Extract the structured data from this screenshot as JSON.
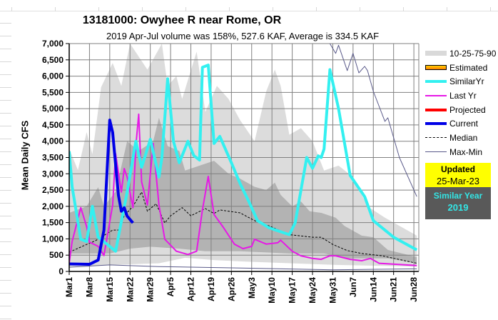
{
  "title": "13181000: Owyhee R near Rome, OR",
  "subtitle": "2019 Apr-Jul volume was 158%, 527.6 KAF, Average is 334.5 KAF",
  "updated": {
    "label": "Updated",
    "date": "25-Mar-23"
  },
  "similar_year": {
    "label": "Similar Year",
    "year": "2019"
  },
  "legend": [
    {
      "label": "10-25-75-90",
      "color": "#d9d9d9"
    },
    {
      "label": "Estimated",
      "color": "#ffa500"
    },
    {
      "label": "SimilarYr",
      "color": "#33f0f0"
    },
    {
      "label": "Last Yr",
      "color": "#e619e6"
    },
    {
      "label": "Projected",
      "color": "#ff0000"
    },
    {
      "label": "Current",
      "color": "#0000e6"
    },
    {
      "label": "Median",
      "color": "#000000"
    },
    {
      "label": "Max-Min",
      "color": "#5a5a8a"
    }
  ],
  "chart_data": {
    "type": "line",
    "title": "13181000: Owyhee R near Rome, OR",
    "ylabel": "Mean Daily CFS",
    "xlabel": "",
    "ylim": [
      0,
      7000
    ],
    "xlim": [
      "Mar 1",
      "Jun 29"
    ],
    "grid": true,
    "legend_position": "right",
    "yticks": [
      "0",
      "500",
      "1,000",
      "1,500",
      "2,000",
      "2,500",
      "3,000",
      "3,500",
      "4,000",
      "4,500",
      "5,000",
      "5,500",
      "6,000",
      "6,500",
      "7,000"
    ],
    "xticks": [
      "Mar1",
      "Mar8",
      "Mar15",
      "Mar22",
      "Mar29",
      "Apr5",
      "Apr12",
      "Apr19",
      "Apr26",
      "May3",
      "May10",
      "May17",
      "May24",
      "May31",
      "Jun7",
      "Jun14",
      "Jun21",
      "Jun28"
    ],
    "bands": {
      "p90": [
        [
          "Mar 1",
          3770
        ],
        [
          "Mar 4",
          3110
        ],
        [
          "Mar 7",
          4280
        ],
        [
          "Mar 9",
          3600
        ],
        [
          "Mar 12",
          5660
        ],
        [
          "Mar 16",
          6400
        ],
        [
          "Mar 19",
          5700
        ],
        [
          "Mar 22",
          7000
        ],
        [
          "Mar 28",
          6200
        ],
        [
          "Apr 2",
          7000
        ],
        [
          "Apr 4",
          5700
        ],
        [
          "Apr 7",
          6000
        ],
        [
          "Apr 9",
          5300
        ],
        [
          "Apr 14",
          6750
        ],
        [
          "Apr 17",
          4900
        ],
        [
          "Apr 21",
          5700
        ],
        [
          "Apr 25",
          5300
        ],
        [
          "Apr 29",
          4650
        ],
        [
          "May 4",
          4000
        ],
        [
          "May 8",
          5530
        ],
        [
          "May 11",
          6200
        ],
        [
          "May 13",
          5700
        ],
        [
          "May 16",
          4200
        ],
        [
          "May 20",
          4400
        ],
        [
          "May 24",
          4000
        ],
        [
          "May 28",
          3100
        ],
        [
          "Jun 2",
          3250
        ],
        [
          "Jun 7",
          2900
        ],
        [
          "Jun 12",
          2000
        ],
        [
          "Jun 18",
          1650
        ],
        [
          "Jun 29",
          1100
        ]
      ],
      "p75": [
        [
          "Mar 1",
          1800
        ],
        [
          "Mar 7",
          2000
        ],
        [
          "Mar 11",
          2590
        ],
        [
          "Mar 13",
          2000
        ],
        [
          "Mar 17",
          2450
        ],
        [
          "Mar 21",
          4000
        ],
        [
          "Mar 25",
          3700
        ],
        [
          "Mar 30",
          4000
        ],
        [
          "Apr 1",
          4720
        ],
        [
          "Apr 4",
          3850
        ],
        [
          "Apr 8",
          3700
        ],
        [
          "Apr 10",
          3100
        ],
        [
          "Apr 15",
          3250
        ],
        [
          "Apr 20",
          3400
        ],
        [
          "Apr 25",
          3000
        ],
        [
          "Apr 29",
          2850
        ],
        [
          "May 4",
          2600
        ],
        [
          "May 8",
          2500
        ],
        [
          "May 11",
          2730
        ],
        [
          "May 13",
          2350
        ],
        [
          "May 17",
          2000
        ],
        [
          "May 20",
          2150
        ],
        [
          "May 23",
          1850
        ],
        [
          "May 27",
          1800
        ],
        [
          "Jun 1",
          1650
        ],
        [
          "Jun 4",
          1400
        ],
        [
          "Jun 10",
          1100
        ],
        [
          "Jun 14",
          1050
        ],
        [
          "Jun 19",
          660
        ],
        [
          "Jun 29",
          440
        ]
      ],
      "p25": [
        [
          "Mar 1",
          550
        ],
        [
          "Mar 15",
          550
        ],
        [
          "Mar 22",
          700
        ],
        [
          "Mar 29",
          760
        ],
        [
          "Apr 8",
          700
        ],
        [
          "Apr 17",
          620
        ],
        [
          "Apr 29",
          620
        ],
        [
          "May 16",
          550
        ],
        [
          "May 28",
          550
        ],
        [
          "Jun 5",
          400
        ],
        [
          "Jun 19",
          400
        ],
        [
          "Jun 29",
          250
        ]
      ],
      "p10": [
        [
          "Mar 1",
          150
        ],
        [
          "Mar 15",
          200
        ],
        [
          "Apr 1",
          250
        ],
        [
          "Apr 10",
          420
        ],
        [
          "Apr 20",
          350
        ],
        [
          "May 1",
          300
        ],
        [
          "Jun 1",
          200
        ],
        [
          "Jun 29",
          150
        ]
      ]
    },
    "series": [
      {
        "name": "Median",
        "points": [
          [
            "Mar 1",
            590
          ],
          [
            "Mar 7",
            830
          ],
          [
            "Mar 10",
            940
          ],
          [
            "Mar 16",
            1270
          ],
          [
            "Mar 18",
            1270
          ],
          [
            "Mar 20",
            1710
          ],
          [
            "Mar 23",
            2000
          ],
          [
            "Mar 26",
            2440
          ],
          [
            "Mar 28",
            1850
          ],
          [
            "Mar 31",
            2080
          ],
          [
            "Apr 3",
            1490
          ],
          [
            "Apr 5",
            1710
          ],
          [
            "Apr 9",
            1960
          ],
          [
            "Apr 12",
            1710
          ],
          [
            "Apr 17",
            1930
          ],
          [
            "Apr 20",
            1780
          ],
          [
            "Apr 22",
            1890
          ],
          [
            "Apr 29",
            1800
          ],
          [
            "May 4",
            1560
          ],
          [
            "May 9",
            1400
          ],
          [
            "May 16",
            1130
          ],
          [
            "May 24",
            1050
          ],
          [
            "May 27",
            1050
          ],
          [
            "May 31",
            830
          ],
          [
            "Jun 5",
            640
          ],
          [
            "Jun 10",
            550
          ],
          [
            "Jun 17",
            480
          ],
          [
            "Jun 29",
            250
          ]
        ]
      },
      {
        "name": "SimilarYr",
        "points": [
          [
            "Mar 1",
            3690
          ],
          [
            "Mar 2",
            2600
          ],
          [
            "Mar 5",
            990
          ],
          [
            "Mar 7",
            920
          ],
          [
            "Mar 9",
            2000
          ],
          [
            "Mar 11",
            1050
          ],
          [
            "Mar 15",
            770
          ],
          [
            "Mar 17",
            620
          ],
          [
            "Mar 21",
            2440
          ],
          [
            "Mar 24",
            4000
          ],
          [
            "Mar 26",
            3200
          ],
          [
            "Mar 29",
            4060
          ],
          [
            "Apr 1",
            2900
          ],
          [
            "Apr 2",
            3500
          ],
          [
            "Apr 4",
            5920
          ],
          [
            "Apr 6",
            4000
          ],
          [
            "Apr 8",
            3340
          ],
          [
            "Apr 11",
            4000
          ],
          [
            "Apr 13",
            3560
          ],
          [
            "Apr 15",
            3420
          ],
          [
            "Apr 16",
            6270
          ],
          [
            "Apr 18",
            6340
          ],
          [
            "Apr 20",
            3930
          ],
          [
            "Apr 22",
            4150
          ],
          [
            "Apr 26",
            3340
          ],
          [
            "Apr 29",
            2700
          ],
          [
            "May 2",
            2150
          ],
          [
            "May 5",
            1560
          ],
          [
            "May 9",
            1340
          ],
          [
            "May 16",
            1130
          ],
          [
            "May 18",
            1490
          ],
          [
            "May 22",
            3500
          ],
          [
            "May 24",
            3170
          ],
          [
            "May 26",
            3550
          ],
          [
            "May 27",
            3500
          ],
          [
            "May 28",
            3760
          ],
          [
            "May 30",
            6200
          ],
          [
            "Jun 2",
            5000
          ],
          [
            "Jun 6",
            2950
          ],
          [
            "Jun 11",
            2300
          ],
          [
            "Jun 14",
            1560
          ],
          [
            "Jun 21",
            1050
          ],
          [
            "Jun 29",
            660
          ]
        ]
      },
      {
        "name": "Last Yr",
        "points": [
          [
            "Mar 1",
            260
          ],
          [
            "Mar 2",
            920
          ],
          [
            "Mar 5",
            1960
          ],
          [
            "Mar 7",
            1380
          ],
          [
            "Mar 8",
            900
          ],
          [
            "Mar 11",
            770
          ],
          [
            "Mar 13",
            490
          ],
          [
            "Mar 16",
            2040
          ],
          [
            "Mar 17",
            3620
          ],
          [
            "Mar 19",
            2440
          ],
          [
            "Mar 20",
            3160
          ],
          [
            "Mar 21",
            2900
          ],
          [
            "Mar 23",
            1960
          ],
          [
            "Mar 24",
            3860
          ],
          [
            "Mar 25",
            4830
          ],
          [
            "Mar 26",
            2750
          ],
          [
            "Mar 28",
            2040
          ],
          [
            "Mar 30",
            3930
          ],
          [
            "Apr 1",
            2040
          ],
          [
            "Apr 3",
            990
          ],
          [
            "Apr 7",
            620
          ],
          [
            "Apr 11",
            520
          ],
          [
            "Apr 14",
            620
          ],
          [
            "Apr 16",
            1890
          ],
          [
            "Apr 18",
            2920
          ],
          [
            "Apr 20",
            1750
          ],
          [
            "Apr 23",
            1380
          ],
          [
            "Apr 27",
            840
          ],
          [
            "Apr 30",
            700
          ],
          [
            "May 3",
            770
          ],
          [
            "May 4",
            990
          ],
          [
            "May 8",
            840
          ],
          [
            "May 12",
            880
          ],
          [
            "May 13",
            960
          ],
          [
            "May 17",
            620
          ],
          [
            "May 20",
            480
          ],
          [
            "May 24",
            400
          ],
          [
            "May 27",
            370
          ],
          [
            "May 30",
            480
          ],
          [
            "Jun 1",
            480
          ],
          [
            "Jun 6",
            370
          ],
          [
            "Jun 10",
            330
          ],
          [
            "Jun 13",
            400
          ],
          [
            "Jun 16",
            250
          ],
          [
            "Jun 29",
            180
          ]
        ]
      },
      {
        "name": "Current",
        "points": [
          [
            "Mar 1",
            230
          ],
          [
            "Mar 8",
            220
          ],
          [
            "Mar 11",
            350
          ],
          [
            "Mar 13",
            1270
          ],
          [
            "Mar 15",
            4650
          ],
          [
            "Mar 16",
            4270
          ],
          [
            "Mar 18",
            2340
          ],
          [
            "Mar 19",
            1850
          ],
          [
            "Mar 20",
            1960
          ],
          [
            "Mar 21",
            1700
          ],
          [
            "Mar 23",
            1490
          ]
        ]
      },
      {
        "name": "Max",
        "points": [
          [
            "May 30",
            7000
          ],
          [
            "Jun 1",
            6700
          ],
          [
            "Jun 2",
            6950
          ],
          [
            "Jun 5",
            6170
          ],
          [
            "Jun 7",
            6700
          ],
          [
            "Jun 9",
            6100
          ],
          [
            "Jun 11",
            6300
          ],
          [
            "Jun 12",
            6170
          ],
          [
            "Jun 14",
            5530
          ],
          [
            "Jun 18",
            4610
          ],
          [
            "Jun 19",
            4720
          ],
          [
            "Jun 23",
            3500
          ],
          [
            "Jun 29",
            2300
          ]
        ]
      },
      {
        "name": "Min",
        "points": [
          [
            "Mar 1",
            130
          ],
          [
            "Mar 15",
            200
          ],
          [
            "Apr 1",
            150
          ],
          [
            "May 1",
            100
          ],
          [
            "May 31",
            50
          ],
          [
            "Jun 29",
            80
          ]
        ]
      }
    ]
  }
}
